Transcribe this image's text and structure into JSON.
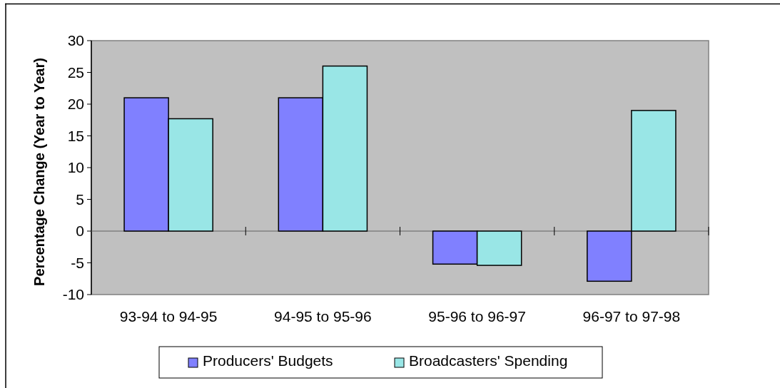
{
  "chart_data": {
    "type": "bar",
    "ylabel": "Percentage Change (Year to Year)",
    "categories": [
      "93-94 to 94-95",
      "94-95 to 95-96",
      "95-96 to 96-97",
      "96-97 to 97-98"
    ],
    "series": [
      {
        "name": "Producers' Budgets",
        "color": "#8080ff",
        "values": [
          21,
          21,
          -5.2,
          -7.9
        ]
      },
      {
        "name": "Broadcasters' Spending",
        "color": "#99e6e6",
        "values": [
          17.7,
          26,
          -5.4,
          19
        ]
      }
    ],
    "ylim": [
      -10,
      30
    ],
    "yticks": [
      -10,
      -5,
      0,
      5,
      10,
      15,
      20,
      25,
      30
    ],
    "legend": "bottom"
  }
}
